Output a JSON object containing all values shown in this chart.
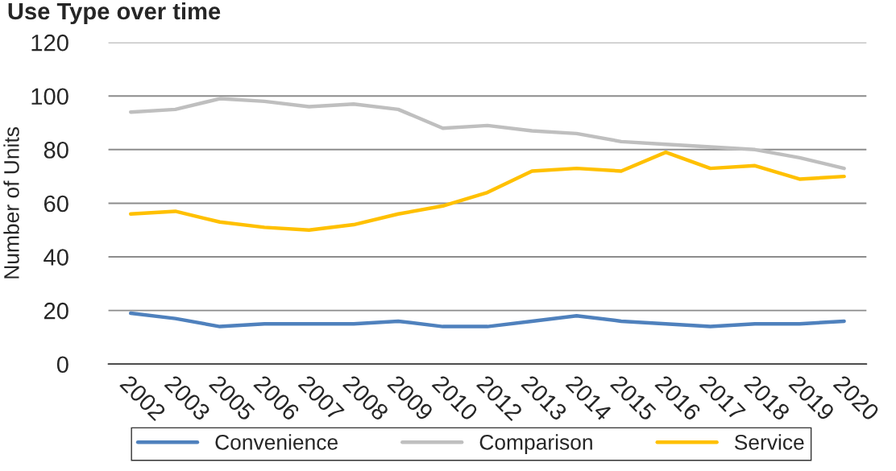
{
  "chart_data": {
    "type": "line",
    "title": "Use Type over time",
    "ylabel": "Number of Units",
    "categories": [
      "2002",
      "2003",
      "2005",
      "2006",
      "2007",
      "2008",
      "2009",
      "2010",
      "2012",
      "2013",
      "2014",
      "2015",
      "2016",
      "2017",
      "2018",
      "2019",
      "2020"
    ],
    "series": [
      {
        "name": "Convenience",
        "color": "#4f81bd",
        "values": [
          19,
          17,
          14,
          15,
          15,
          15,
          16,
          14,
          14,
          16,
          18,
          16,
          15,
          14,
          15,
          15,
          16
        ]
      },
      {
        "name": "Comparison",
        "color": "#bfbfbf",
        "values": [
          94,
          95,
          99,
          98,
          96,
          97,
          95,
          88,
          89,
          87,
          86,
          83,
          82,
          81,
          80,
          77,
          73
        ]
      },
      {
        "name": "Service",
        "color": "#ffc000",
        "values": [
          56,
          57,
          53,
          51,
          50,
          52,
          56,
          59,
          64,
          72,
          73,
          72,
          79,
          73,
          74,
          69,
          70
        ]
      }
    ],
    "ylim": [
      0,
      120
    ],
    "yticks": [
      0,
      20,
      40,
      60,
      80,
      100,
      120
    ],
    "grid": "y",
    "legend": "bottom"
  }
}
